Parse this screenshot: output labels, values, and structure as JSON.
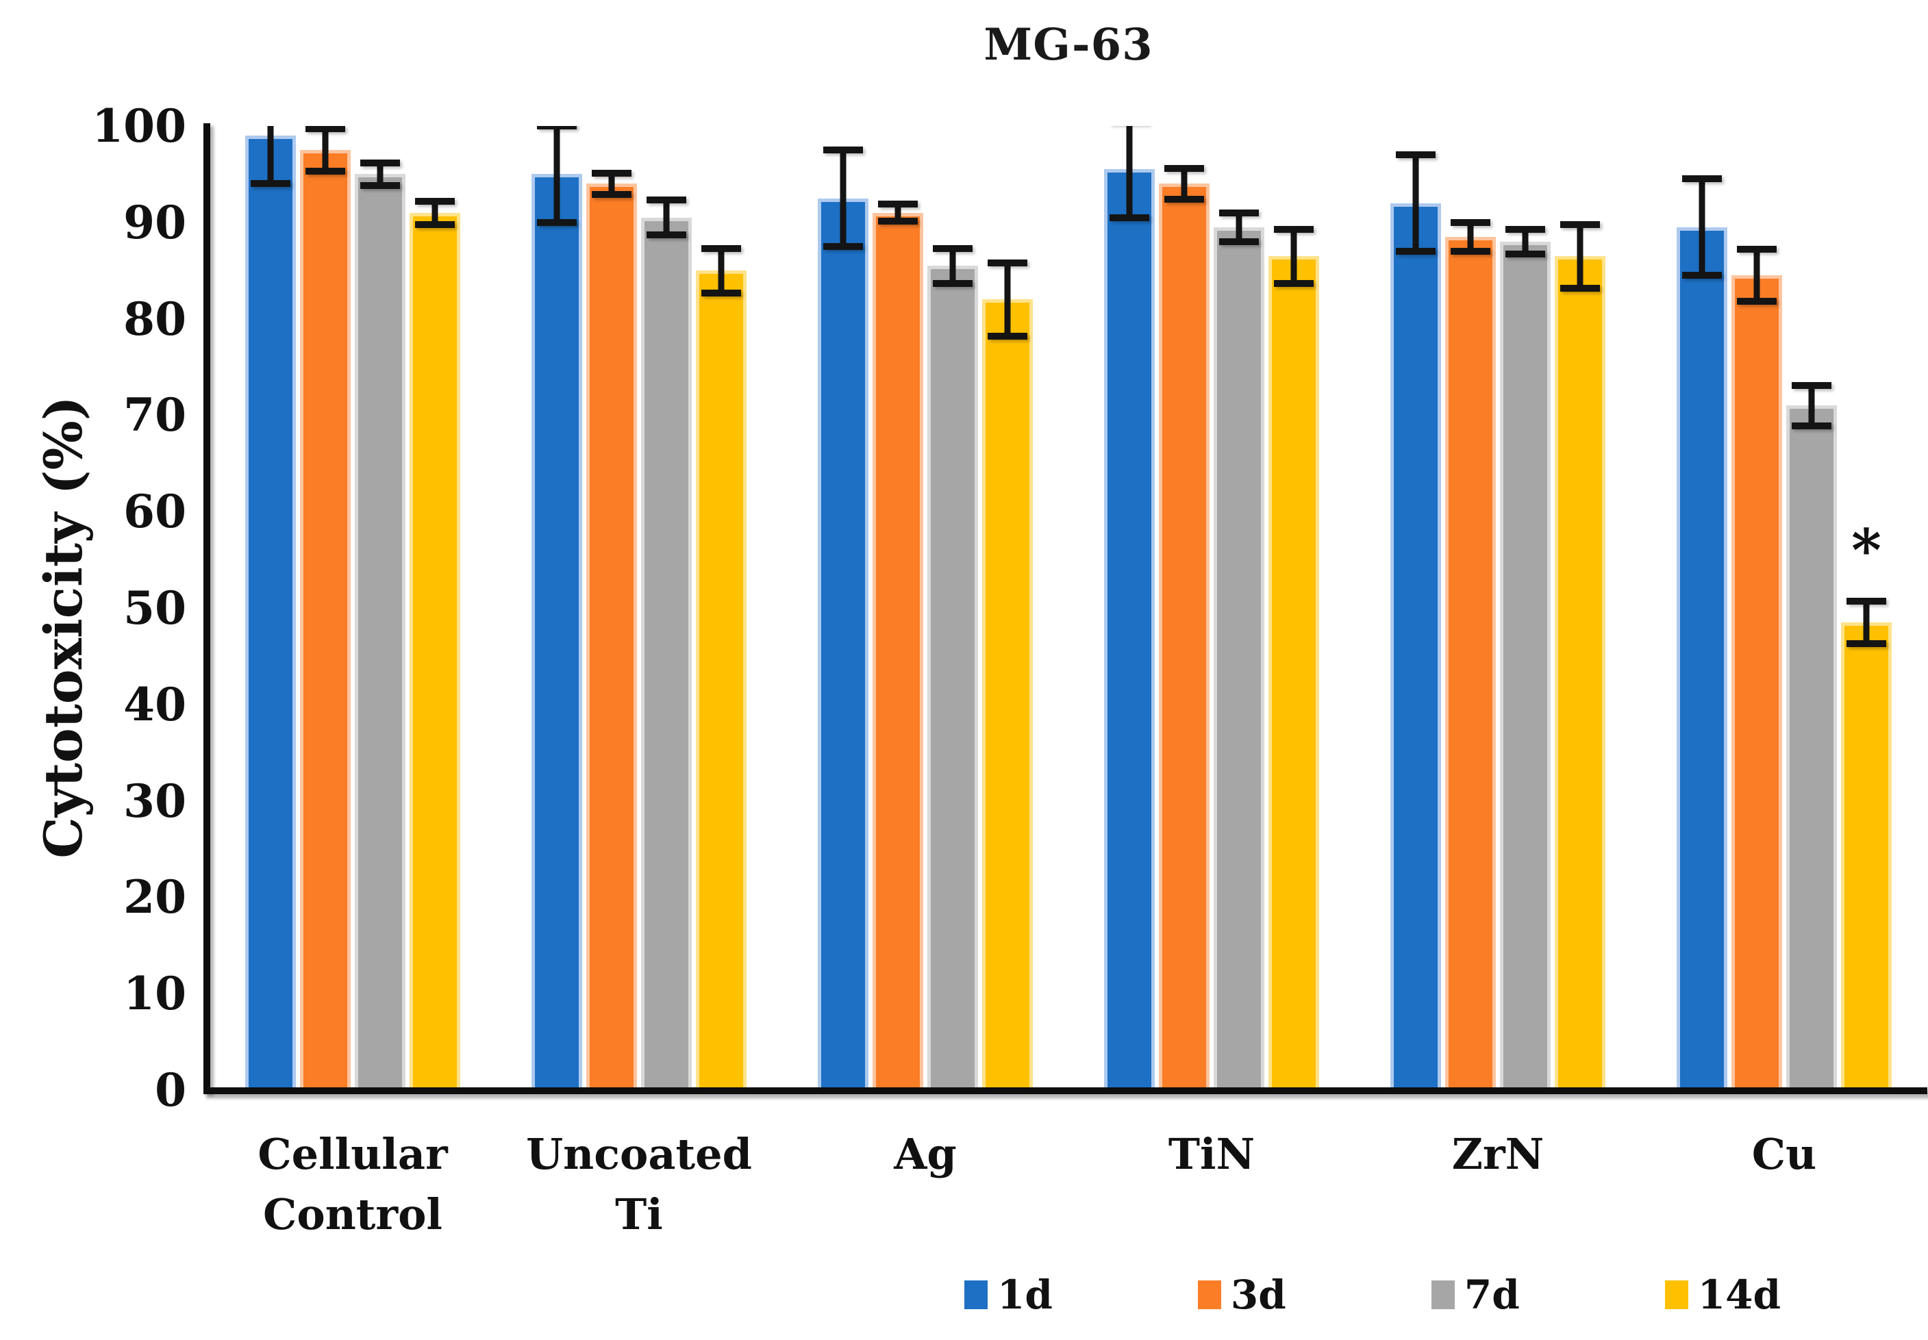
{
  "chart_data": {
    "type": "bar",
    "title": "MG-63",
    "xlabel": "",
    "ylabel": "Cytotoxicity (%)",
    "ylim": [
      0,
      100
    ],
    "y_ticks": [
      0,
      10,
      20,
      30,
      40,
      50,
      60,
      70,
      80,
      90,
      100
    ],
    "grid": "off",
    "legend_position": "bottom",
    "categories": [
      "Cellular Control",
      "Uncoated Ti",
      "Ag",
      "TiN",
      "ZrN",
      "Cu"
    ],
    "series": [
      {
        "name": "1d",
        "color": "#1d70c4",
        "edge_color": "#adc9ee",
        "values": [
          99,
          95,
          92.5,
          95.5,
          92,
          89.5
        ],
        "errors": [
          5,
          5,
          5,
          5,
          5,
          5
        ]
      },
      {
        "name": "3d",
        "color": "#fb7d26",
        "edge_color": "#fdc49e",
        "values": [
          97.5,
          94,
          91,
          94,
          88.5,
          84.5
        ],
        "errors": [
          2.2,
          1.1,
          0.9,
          1.6,
          1.5,
          2.7
        ]
      },
      {
        "name": "7d",
        "color": "#a6a6a6",
        "edge_color": "#d9d9d9",
        "values": [
          95,
          90.5,
          85.5,
          89.5,
          88,
          71
        ],
        "errors": [
          1.2,
          1.8,
          1.8,
          1.5,
          1.3,
          2.1
        ]
      },
      {
        "name": "14d",
        "color": "#ffc000",
        "edge_color": "#ffe28a",
        "values": [
          91,
          85,
          82,
          86.5,
          86.5,
          48.5
        ],
        "errors": [
          1.2,
          2.3,
          3.8,
          2.8,
          3.3,
          2.2
        ]
      }
    ],
    "annotations": [
      {
        "text": "*",
        "category": "Cu",
        "series": "14d",
        "y": 56
      }
    ],
    "error_bar_color": "#141414",
    "axis_color": "#0e0e0e",
    "background_color": "#ffffff"
  }
}
